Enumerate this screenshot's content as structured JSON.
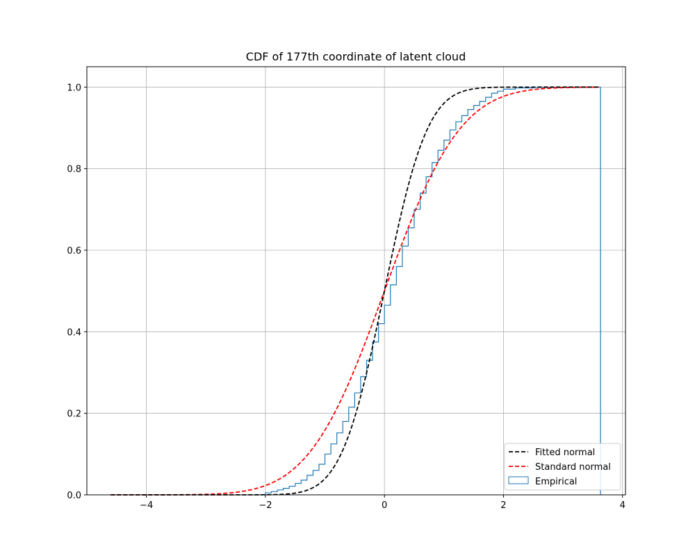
{
  "chart_data": {
    "type": "line",
    "title": "CDF of 177th coordinate of latent cloud",
    "xlabel": "",
    "ylabel": "",
    "xlim": [
      -5.0,
      4.05
    ],
    "ylim": [
      0.0,
      1.05
    ],
    "x_ticks": [
      -4,
      -2,
      0,
      2,
      4
    ],
    "y_ticks": [
      0.0,
      0.2,
      0.4,
      0.6,
      0.8,
      1.0
    ],
    "x_tick_labels": [
      "−4",
      "−2",
      "0",
      "2",
      "4"
    ],
    "y_tick_labels": [
      "0.0",
      "0.2",
      "0.4",
      "0.6",
      "0.8",
      "1.0"
    ],
    "grid": true,
    "legend_position": "lower-right",
    "series": [
      {
        "name": "Fitted normal",
        "kind": "line",
        "style": "dashed",
        "color": "#000000",
        "mean": 0.0,
        "std": 0.57,
        "x_range": [
          -4.6,
          3.6
        ]
      },
      {
        "name": "Standard normal",
        "kind": "line",
        "style": "dashed",
        "color": "#ff0000",
        "mean": 0.0,
        "std": 1.0,
        "x_range": [
          -4.6,
          3.6
        ]
      },
      {
        "name": "Empirical",
        "kind": "step",
        "color": "#1f77b4",
        "x": [
          -2.0,
          -1.9,
          -1.8,
          -1.7,
          -1.6,
          -1.5,
          -1.4,
          -1.3,
          -1.2,
          -1.1,
          -1.0,
          -0.9,
          -0.8,
          -0.7,
          -0.6,
          -0.5,
          -0.4,
          -0.3,
          -0.2,
          -0.1,
          0.0,
          0.1,
          0.2,
          0.3,
          0.4,
          0.5,
          0.6,
          0.7,
          0.8,
          0.9,
          1.0,
          1.1,
          1.2,
          1.3,
          1.4,
          1.5,
          1.6,
          1.7,
          1.8,
          1.9,
          2.0,
          2.2,
          2.5,
          3.0,
          3.63
        ],
        "y": [
          0.005,
          0.008,
          0.012,
          0.016,
          0.021,
          0.028,
          0.036,
          0.048,
          0.06,
          0.075,
          0.1,
          0.125,
          0.152,
          0.18,
          0.215,
          0.25,
          0.29,
          0.33,
          0.375,
          0.42,
          0.465,
          0.515,
          0.56,
          0.61,
          0.655,
          0.7,
          0.74,
          0.78,
          0.815,
          0.845,
          0.87,
          0.895,
          0.915,
          0.93,
          0.945,
          0.955,
          0.965,
          0.975,
          0.985,
          0.99,
          0.995,
          0.998,
          0.999,
          1.0,
          1.0
        ]
      }
    ]
  }
}
